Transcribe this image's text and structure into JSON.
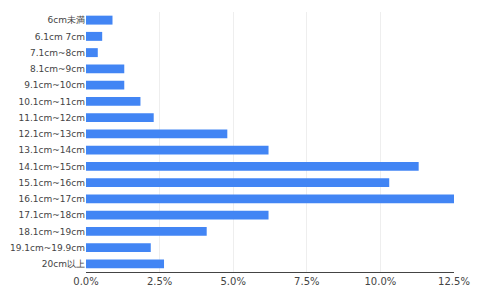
{
  "chart_data": {
    "type": "bar",
    "orientation": "horizontal",
    "categories": [
      "6cm未満",
      "6.1cm 7cm",
      "7.1cm~8cm",
      "8.1cm~9cm",
      "9.1cm~10cm",
      "10.1cm~11cm",
      "11.1cm~12cm",
      "12.1cm~13cm",
      "13.1cm~14cm",
      "14.1cm~15cm",
      "15.1cm~16cm",
      "16.1cm~17cm",
      "17.1cm~18cm",
      "18.1cm~19cm",
      "19.1cm~19.9cm",
      "20cm以上"
    ],
    "values": [
      0.9,
      0.55,
      0.4,
      1.3,
      1.3,
      1.85,
      2.3,
      4.8,
      6.2,
      11.3,
      10.3,
      12.5,
      6.2,
      4.1,
      2.2,
      2.65
    ],
    "color": "#4285f4",
    "xlim": [
      0,
      12.5
    ],
    "xticks": [
      {
        "value": 0.0,
        "label": "0.0%"
      },
      {
        "value": 2.5,
        "label": "2.5%"
      },
      {
        "value": 5.0,
        "label": "5.0%"
      },
      {
        "value": 7.5,
        "label": "7.5%"
      },
      {
        "value": 10.0,
        "label": "10.0%"
      },
      {
        "value": 12.5,
        "label": "12.5%"
      }
    ],
    "grid": true
  }
}
